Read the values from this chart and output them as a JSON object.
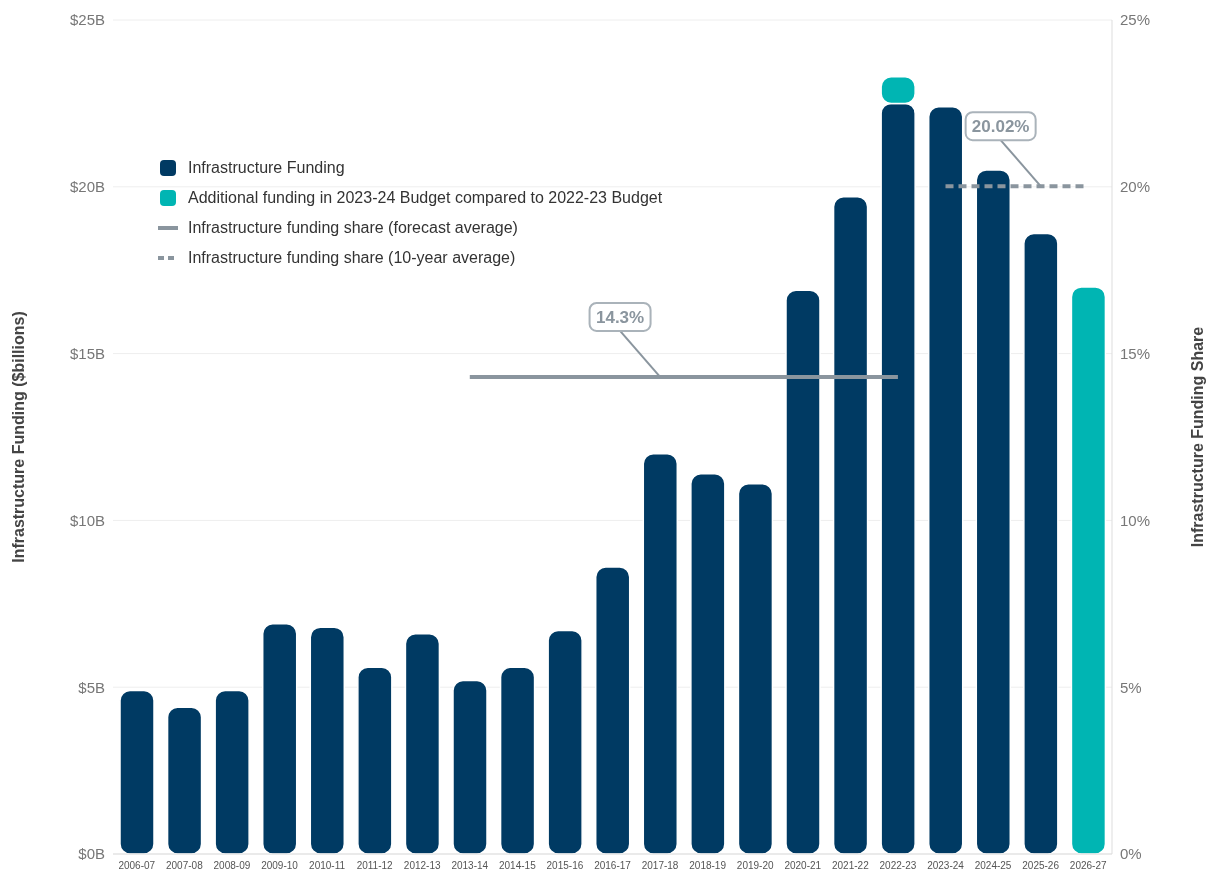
{
  "chart_data": {
    "type": "bar",
    "stacked": true,
    "ylabel": "Infrastructure Funding ($billions)",
    "y2label": "Infrastructure Funding Share",
    "categories": [
      "2006-07",
      "2007-08",
      "2008-09",
      "2009-10",
      "2010-11",
      "2011-12",
      "2012-13",
      "2013-14",
      "2014-15",
      "2015-16",
      "2016-17",
      "2017-18",
      "2018-19",
      "2019-20",
      "2020-21",
      "2021-22",
      "2022-23",
      "2023-24",
      "2024-25",
      "2025-26",
      "2026-27"
    ],
    "series": [
      {
        "name": "Infrastructure Funding",
        "color": "#003a63",
        "colors": [
          "#003a63",
          "#003a63",
          "#003a63",
          "#003a63",
          "#003a63",
          "#003a63",
          "#003a63",
          "#003a63",
          "#003a63",
          "#003a63",
          "#003a63",
          "#003a63",
          "#003a63",
          "#003a63",
          "#003a63",
          "#003a63",
          "#003a63",
          "#003a63",
          "#003a63",
          "#003a63",
          "#00b5b3"
        ],
        "values": [
          4.9,
          4.4,
          4.9,
          6.9,
          6.8,
          5.6,
          6.6,
          5.2,
          5.6,
          6.7,
          8.6,
          12.0,
          11.4,
          11.1,
          16.9,
          19.7,
          22.5,
          22.4,
          20.5,
          18.6,
          17.0
        ]
      },
      {
        "name": "Additional funding in 2023-24 Budget compared to 2022-23 Budget",
        "color": "#00b5b3",
        "values": [
          null,
          null,
          null,
          null,
          null,
          null,
          null,
          null,
          null,
          null,
          null,
          null,
          null,
          null,
          null,
          null,
          0.8,
          null,
          null,
          null,
          null
        ]
      },
      {
        "name": "Infrastructure funding share (forecast average)",
        "type": "line",
        "axis": "y2",
        "color": "#8a959e",
        "line_style": "solid",
        "values": [
          null,
          null,
          null,
          null,
          null,
          null,
          null,
          14.3,
          14.3,
          14.3,
          14.3,
          14.3,
          14.3,
          14.3,
          14.3,
          14.3,
          14.3,
          null,
          null,
          null,
          null
        ],
        "value_labels": [
          null,
          null,
          null,
          null,
          null,
          null,
          null,
          null,
          null,
          null,
          null,
          "14.3%",
          null,
          null,
          null,
          null,
          null,
          null,
          null,
          null,
          null
        ]
      },
      {
        "name": "Infrastructure funding share (10-year average)",
        "type": "line",
        "axis": "y2",
        "color": "#8a959e",
        "line_style": "dashed",
        "values": [
          null,
          null,
          null,
          null,
          null,
          null,
          null,
          null,
          null,
          null,
          null,
          null,
          null,
          null,
          null,
          null,
          null,
          20.02,
          20.02,
          20.02,
          20.02
        ],
        "value_labels": [
          null,
          null,
          null,
          null,
          null,
          null,
          null,
          null,
          null,
          null,
          null,
          null,
          null,
          null,
          null,
          null,
          null,
          null,
          null,
          "20.02%",
          null
        ]
      }
    ],
    "ylim": [
      0,
      25
    ],
    "yticks": [
      {
        "value": 0,
        "label": "$0B"
      },
      {
        "value": 5,
        "label": "$5B"
      },
      {
        "value": 10,
        "label": "$10B"
      },
      {
        "value": 15,
        "label": "$15B"
      },
      {
        "value": 20,
        "label": "$20B"
      },
      {
        "value": 25,
        "label": "$25B"
      }
    ],
    "y2lim": [
      0,
      25
    ],
    "y2ticks": [
      {
        "value": 0,
        "label": "0%"
      },
      {
        "value": 5,
        "label": "5%"
      },
      {
        "value": 10,
        "label": "10%"
      },
      {
        "value": 15,
        "label": "15%"
      },
      {
        "value": 20,
        "label": "20%"
      },
      {
        "value": 25,
        "label": "25%"
      }
    ],
    "grid": "y",
    "legend": "top left"
  }
}
